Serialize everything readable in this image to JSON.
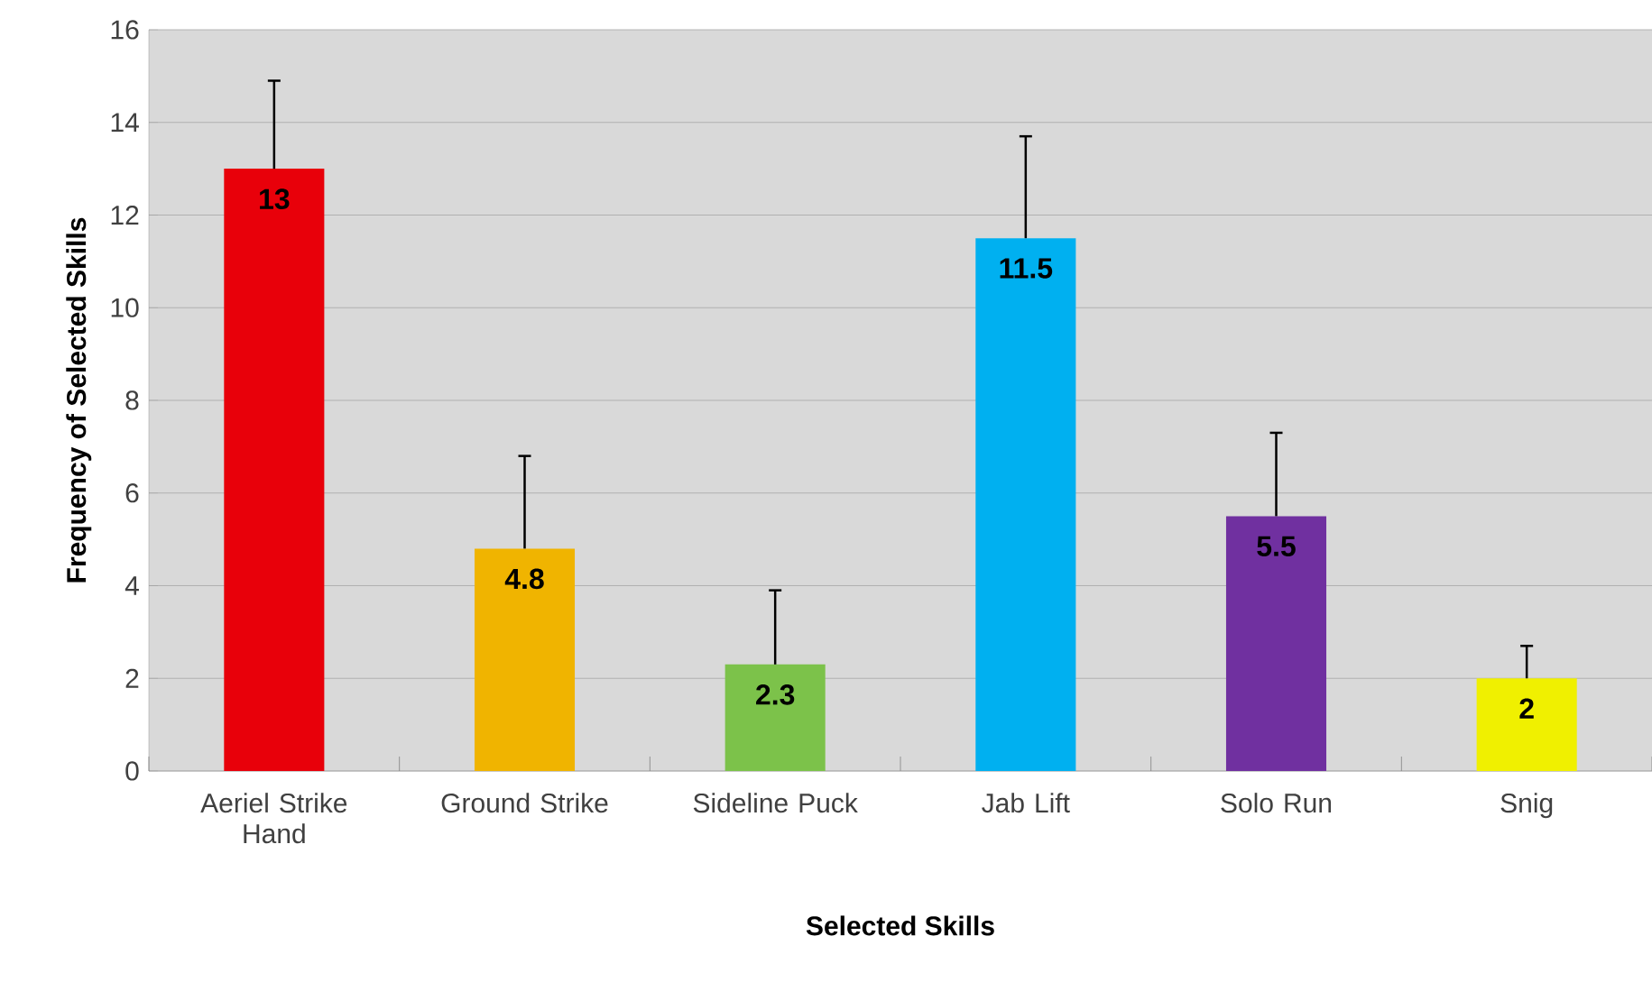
{
  "chart_data": {
    "type": "bar",
    "xlabel": "Selected Skills",
    "ylabel": "Frequency of Selected Skills",
    "categories": [
      "Aeriel Strike Hand",
      "Ground Strike",
      "Sideline Puck",
      "Jab Lift",
      "Solo Run",
      "Snig"
    ],
    "values": [
      13,
      4.8,
      2.3,
      11.5,
      5.5,
      2
    ],
    "colors": [
      "#e8000a",
      "#f0b400",
      "#7cc24a",
      "#00b0f0",
      "#7030a0",
      "#f0f000"
    ],
    "errors": [
      [
        13,
        14.9
      ],
      [
        4.8,
        6.8
      ],
      [
        2.3,
        3.9
      ],
      [
        11.5,
        13.7
      ],
      [
        5.5,
        7.3
      ],
      [
        2,
        2.7
      ]
    ],
    "ylim": [
      0,
      16
    ],
    "yticks": [
      0,
      2,
      4,
      6,
      8,
      10,
      12,
      14,
      16
    ],
    "grid": "y",
    "data_labels": true
  }
}
